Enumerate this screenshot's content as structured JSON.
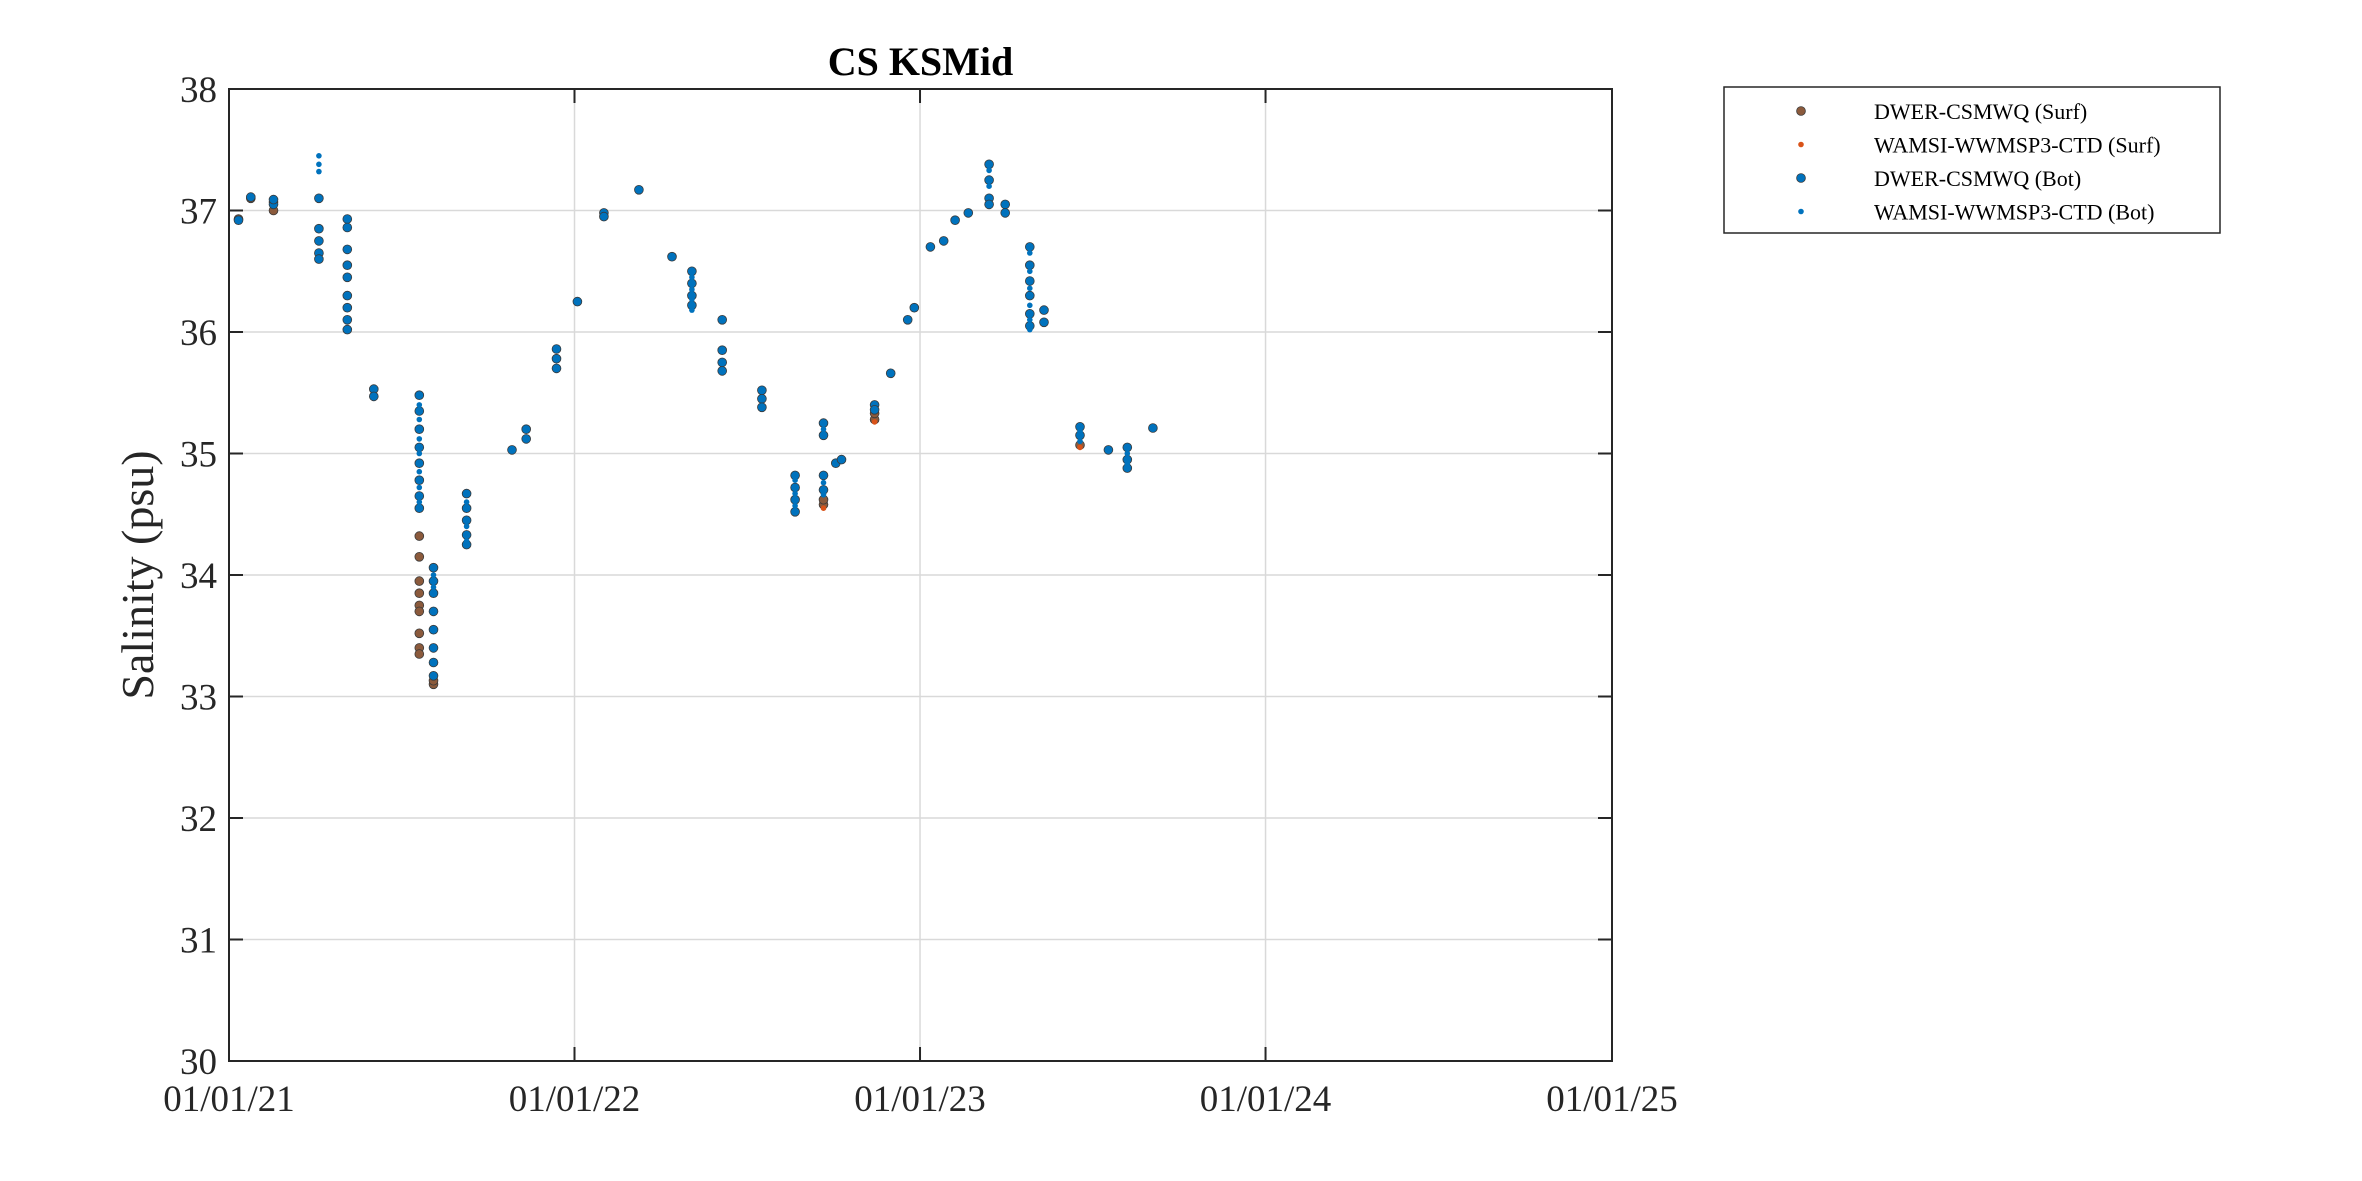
{
  "chart_data": {
    "type": "scatter",
    "title": "CS KSMid",
    "xlabel": "",
    "ylabel": "Salinity (psu)",
    "xlim": [
      "2021-01-01",
      "2025-01-01"
    ],
    "ylim": [
      30,
      38
    ],
    "x_ticks": [
      "01/01/21",
      "01/01/22",
      "01/01/23",
      "01/01/24",
      "01/01/25"
    ],
    "y_ticks": [
      30,
      31,
      32,
      33,
      34,
      35,
      36,
      37,
      38
    ],
    "grid": true,
    "legend_position": "outside-top-right",
    "series": [
      {
        "name": "DWER-CSMWQ (Surf)",
        "color": "#8B5A3C",
        "marker": "dot-large",
        "points": [
          [
            "2021-01-11",
            36.93
          ],
          [
            "2021-01-24",
            37.1
          ],
          [
            "2021-02-17",
            37.0
          ],
          [
            "2021-02-17",
            37.07
          ],
          [
            "2021-07-21",
            34.32
          ],
          [
            "2021-07-21",
            34.15
          ],
          [
            "2021-07-21",
            33.95
          ],
          [
            "2021-07-21",
            33.85
          ],
          [
            "2021-07-21",
            33.75
          ],
          [
            "2021-07-21",
            33.7
          ],
          [
            "2021-07-21",
            33.52
          ],
          [
            "2021-07-21",
            33.4
          ],
          [
            "2021-07-21",
            33.35
          ],
          [
            "2021-08-05",
            33.1
          ],
          [
            "2021-08-05",
            33.13
          ],
          [
            "2022-09-21",
            34.58
          ],
          [
            "2022-09-21",
            34.62
          ],
          [
            "2022-11-14",
            35.28
          ],
          [
            "2022-11-14",
            35.33
          ],
          [
            "2023-06-19",
            35.07
          ]
        ]
      },
      {
        "name": "WAMSI-WWMSP3-CTD (Surf)",
        "color": "#D95319",
        "marker": "dot-small",
        "points": [
          [
            "2022-09-21",
            34.55
          ],
          [
            "2022-11-14",
            35.26
          ],
          [
            "2023-06-19",
            35.05
          ]
        ]
      },
      {
        "name": "DWER-CSMWQ (Bot)",
        "color": "#0072BD",
        "marker": "dot-large",
        "points": [
          [
            "2021-01-11",
            36.92
          ],
          [
            "2021-01-24",
            37.11
          ],
          [
            "2021-02-17",
            37.05
          ],
          [
            "2021-02-17",
            37.09
          ],
          [
            "2021-04-06",
            37.1
          ],
          [
            "2021-04-06",
            36.85
          ],
          [
            "2021-04-06",
            36.75
          ],
          [
            "2021-04-06",
            36.65
          ],
          [
            "2021-04-06",
            36.6
          ],
          [
            "2021-05-06",
            36.93
          ],
          [
            "2021-05-06",
            36.86
          ],
          [
            "2021-05-06",
            36.68
          ],
          [
            "2021-05-06",
            36.55
          ],
          [
            "2021-05-06",
            36.45
          ],
          [
            "2021-05-06",
            36.3
          ],
          [
            "2021-05-06",
            36.2
          ],
          [
            "2021-05-06",
            36.1
          ],
          [
            "2021-05-06",
            36.02
          ],
          [
            "2021-06-03",
            35.53
          ],
          [
            "2021-06-03",
            35.47
          ],
          [
            "2021-07-21",
            35.48
          ],
          [
            "2021-07-21",
            35.35
          ],
          [
            "2021-07-21",
            35.2
          ],
          [
            "2021-07-21",
            35.05
          ],
          [
            "2021-07-21",
            34.92
          ],
          [
            "2021-07-21",
            34.78
          ],
          [
            "2021-07-21",
            34.65
          ],
          [
            "2021-07-21",
            34.55
          ],
          [
            "2021-08-05",
            34.06
          ],
          [
            "2021-08-05",
            33.95
          ],
          [
            "2021-08-05",
            33.85
          ],
          [
            "2021-08-05",
            33.7
          ],
          [
            "2021-08-05",
            33.55
          ],
          [
            "2021-08-05",
            33.4
          ],
          [
            "2021-08-05",
            33.28
          ],
          [
            "2021-08-05",
            33.17
          ],
          [
            "2021-09-09",
            34.67
          ],
          [
            "2021-09-09",
            34.55
          ],
          [
            "2021-09-09",
            34.45
          ],
          [
            "2021-09-09",
            34.33
          ],
          [
            "2021-09-09",
            34.25
          ],
          [
            "2021-10-27",
            35.03
          ],
          [
            "2021-11-11",
            35.2
          ],
          [
            "2021-11-11",
            35.12
          ],
          [
            "2021-12-13",
            35.86
          ],
          [
            "2021-12-13",
            35.78
          ],
          [
            "2021-12-13",
            35.7
          ],
          [
            "2022-01-04",
            36.25
          ],
          [
            "2022-02-01",
            36.98
          ],
          [
            "2022-02-01",
            36.95
          ],
          [
            "2022-03-10",
            37.17
          ],
          [
            "2022-04-14",
            36.62
          ],
          [
            "2022-05-05",
            36.5
          ],
          [
            "2022-05-05",
            36.4
          ],
          [
            "2022-05-05",
            36.3
          ],
          [
            "2022-05-05",
            36.22
          ],
          [
            "2022-06-06",
            36.1
          ],
          [
            "2022-06-06",
            35.85
          ],
          [
            "2022-06-06",
            35.75
          ],
          [
            "2022-06-06",
            35.68
          ],
          [
            "2022-07-18",
            35.52
          ],
          [
            "2022-07-18",
            35.45
          ],
          [
            "2022-07-18",
            35.38
          ],
          [
            "2022-08-22",
            34.82
          ],
          [
            "2022-08-22",
            34.72
          ],
          [
            "2022-08-22",
            34.62
          ],
          [
            "2022-08-22",
            34.52
          ],
          [
            "2022-09-21",
            35.25
          ],
          [
            "2022-09-21",
            35.15
          ],
          [
            "2022-09-21",
            34.82
          ],
          [
            "2022-09-21",
            34.7
          ],
          [
            "2022-10-04",
            34.92
          ],
          [
            "2022-10-10",
            34.95
          ],
          [
            "2022-11-14",
            35.4
          ],
          [
            "2022-11-14",
            35.36
          ],
          [
            "2022-12-01",
            35.66
          ],
          [
            "2022-12-19",
            36.1
          ],
          [
            "2022-12-26",
            36.2
          ],
          [
            "2023-01-12",
            36.7
          ],
          [
            "2023-01-26",
            36.75
          ],
          [
            "2023-02-07",
            36.92
          ],
          [
            "2023-02-21",
            36.98
          ],
          [
            "2023-03-15",
            37.38
          ],
          [
            "2023-03-15",
            37.25
          ],
          [
            "2023-03-15",
            37.1
          ],
          [
            "2023-03-15",
            37.05
          ],
          [
            "2023-04-01",
            37.05
          ],
          [
            "2023-04-01",
            36.98
          ],
          [
            "2023-04-27",
            36.7
          ],
          [
            "2023-04-27",
            36.55
          ],
          [
            "2023-04-27",
            36.42
          ],
          [
            "2023-04-27",
            36.3
          ],
          [
            "2023-04-27",
            36.15
          ],
          [
            "2023-04-27",
            36.05
          ],
          [
            "2023-05-12",
            36.18
          ],
          [
            "2023-05-12",
            36.08
          ],
          [
            "2023-06-19",
            35.22
          ],
          [
            "2023-06-19",
            35.15
          ],
          [
            "2023-07-19",
            35.03
          ],
          [
            "2023-08-08",
            35.05
          ],
          [
            "2023-08-08",
            34.95
          ],
          [
            "2023-08-08",
            34.88
          ],
          [
            "2023-09-04",
            35.21
          ]
        ]
      },
      {
        "name": "WAMSI-WWMSP3-CTD (Bot)",
        "color": "#0072BD",
        "marker": "dot-small",
        "points": [
          [
            "2021-04-06",
            37.45
          ],
          [
            "2021-04-06",
            37.38
          ],
          [
            "2021-04-06",
            37.32
          ],
          [
            "2021-07-21",
            35.4
          ],
          [
            "2021-07-21",
            35.28
          ],
          [
            "2021-07-21",
            35.12
          ],
          [
            "2021-07-21",
            35.0
          ],
          [
            "2021-07-21",
            34.85
          ],
          [
            "2021-07-21",
            34.72
          ],
          [
            "2021-07-21",
            34.6
          ],
          [
            "2021-08-05",
            34.0
          ],
          [
            "2021-08-05",
            33.9
          ],
          [
            "2021-09-09",
            34.6
          ],
          [
            "2021-09-09",
            34.4
          ],
          [
            "2021-09-09",
            34.28
          ],
          [
            "2022-05-05",
            36.45
          ],
          [
            "2022-05-05",
            36.35
          ],
          [
            "2022-05-05",
            36.27
          ],
          [
            "2022-05-05",
            36.18
          ],
          [
            "2022-08-22",
            34.78
          ],
          [
            "2022-08-22",
            34.67
          ],
          [
            "2022-08-22",
            34.57
          ],
          [
            "2022-09-21",
            35.2
          ],
          [
            "2022-09-21",
            34.76
          ],
          [
            "2022-09-21",
            34.66
          ],
          [
            "2023-03-15",
            37.33
          ],
          [
            "2023-03-15",
            37.2
          ],
          [
            "2023-04-27",
            36.65
          ],
          [
            "2023-04-27",
            36.5
          ],
          [
            "2023-04-27",
            36.36
          ],
          [
            "2023-04-27",
            36.22
          ],
          [
            "2023-04-27",
            36.1
          ],
          [
            "2023-04-27",
            36.02
          ],
          [
            "2023-06-19",
            35.18
          ],
          [
            "2023-06-19",
            35.1
          ],
          [
            "2023-08-08",
            35.0
          ],
          [
            "2023-08-08",
            34.92
          ]
        ]
      }
    ]
  }
}
